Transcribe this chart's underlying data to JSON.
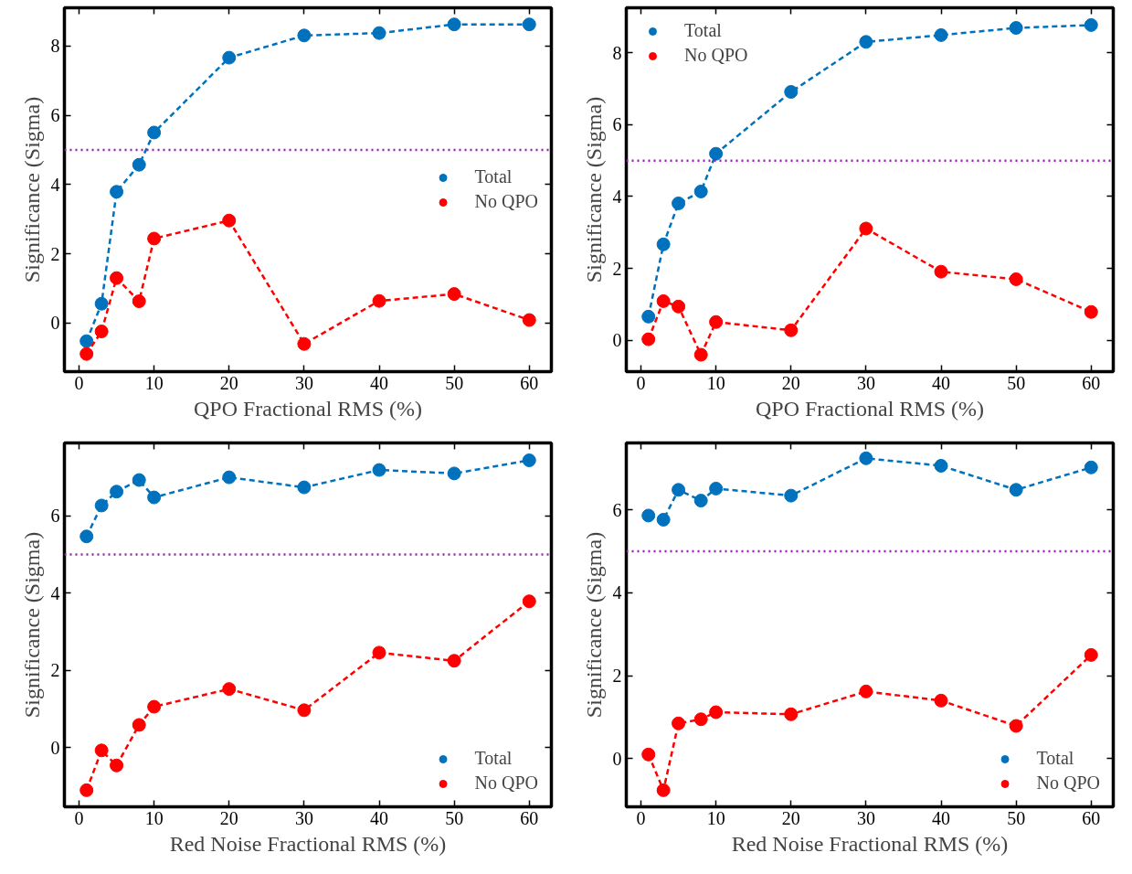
{
  "chart_data": [
    {
      "type": "line",
      "xlabel": "QPO Fractional RMS (%)",
      "ylabel": "Significance (Sigma)",
      "xlim": [
        -1.95,
        62.95
      ],
      "ylim": [
        -1.4,
        9.1
      ],
      "xticks": [
        0,
        10,
        20,
        30,
        40,
        50,
        60
      ],
      "yticks": [
        0,
        2,
        4,
        6,
        8
      ],
      "marker": "circle",
      "line_style": "dashed",
      "legend": "center right",
      "grid": false,
      "ref_lines": [
        {
          "axis": "y",
          "value": 5,
          "color": "#9b1fb5",
          "line_style": "dotted"
        }
      ],
      "x": [
        1,
        3,
        5,
        8,
        10,
        20,
        30,
        40,
        50,
        60
      ],
      "series": [
        {
          "name": "Total",
          "color": "#0072bd",
          "values": [
            -0.52,
            0.56,
            3.79,
            4.57,
            5.5,
            7.66,
            8.3,
            8.37,
            8.62,
            8.62
          ]
        },
        {
          "name": "No QPO",
          "color": "#ff0000",
          "values": [
            -0.89,
            -0.24,
            1.3,
            0.63,
            2.44,
            2.96,
            -0.6,
            0.64,
            0.84,
            0.09
          ]
        }
      ]
    },
    {
      "type": "line",
      "xlabel": "QPO Fractional RMS (%)",
      "ylabel": "Significance (Sigma)",
      "xlim": [
        -1.95,
        62.95
      ],
      "ylim": [
        -0.87,
        9.25
      ],
      "xticks": [
        0,
        10,
        20,
        30,
        40,
        50,
        60
      ],
      "yticks": [
        0,
        2,
        4,
        6,
        8
      ],
      "marker": "circle",
      "line_style": "dashed",
      "legend": "top left",
      "grid": false,
      "ref_lines": [
        {
          "axis": "y",
          "value": 5,
          "color": "#9b1fb5",
          "line_style": "dotted"
        }
      ],
      "x": [
        1,
        3,
        5,
        8,
        10,
        20,
        30,
        40,
        50,
        60
      ],
      "series": [
        {
          "name": "Total",
          "color": "#0072bd",
          "values": [
            0.66,
            2.67,
            3.81,
            4.14,
            5.19,
            6.91,
            8.3,
            8.49,
            8.69,
            8.77
          ]
        },
        {
          "name": "No QPO",
          "color": "#ff0000",
          "values": [
            0.03,
            1.09,
            0.94,
            -0.4,
            0.51,
            0.28,
            3.11,
            1.91,
            1.7,
            0.79
          ]
        }
      ]
    },
    {
      "type": "line",
      "xlabel": "Red Noise Fractional RMS (%)",
      "ylabel": "Significance (Sigma)",
      "xlim": [
        -1.95,
        62.95
      ],
      "ylim": [
        -1.53,
        7.89
      ],
      "xticks": [
        0,
        10,
        20,
        30,
        40,
        50,
        60
      ],
      "yticks": [
        0,
        2,
        4,
        6
      ],
      "marker": "circle",
      "line_style": "dashed",
      "legend": "bottom right",
      "grid": false,
      "ref_lines": [
        {
          "axis": "y",
          "value": 5,
          "color": "#9b1fb5",
          "line_style": "dotted"
        }
      ],
      "x": [
        1,
        3,
        5,
        8,
        10,
        20,
        30,
        40,
        50,
        60
      ],
      "series": [
        {
          "name": "Total",
          "color": "#0072bd",
          "values": [
            5.47,
            6.27,
            6.63,
            6.93,
            6.48,
            7.0,
            6.74,
            7.19,
            7.1,
            7.44
          ]
        },
        {
          "name": "No QPO",
          "color": "#ff0000",
          "values": [
            -1.1,
            -0.07,
            -0.46,
            0.59,
            1.06,
            1.52,
            0.97,
            2.46,
            2.25,
            3.79
          ]
        }
      ]
    },
    {
      "type": "line",
      "xlabel": "Red Noise Fractional RMS (%)",
      "ylabel": "Significance (Sigma)",
      "xlim": [
        -1.95,
        62.95
      ],
      "ylim": [
        -1.16,
        7.61
      ],
      "xticks": [
        0,
        10,
        20,
        30,
        40,
        50,
        60
      ],
      "yticks": [
        0,
        2,
        4,
        6
      ],
      "marker": "circle",
      "line_style": "dashed",
      "legend": "bottom right",
      "grid": false,
      "ref_lines": [
        {
          "axis": "y",
          "value": 5,
          "color": "#9b1fb5",
          "line_style": "dotted"
        }
      ],
      "x": [
        1,
        3,
        5,
        8,
        10,
        20,
        30,
        40,
        50,
        60
      ],
      "series": [
        {
          "name": "Total",
          "color": "#0072bd",
          "values": [
            5.86,
            5.76,
            6.48,
            6.22,
            6.51,
            6.34,
            7.24,
            7.06,
            6.48,
            7.02
          ]
        },
        {
          "name": "No QPO",
          "color": "#ff0000",
          "values": [
            0.1,
            -0.76,
            0.85,
            0.95,
            1.12,
            1.07,
            1.62,
            1.4,
            0.79,
            2.5
          ]
        }
      ]
    }
  ]
}
